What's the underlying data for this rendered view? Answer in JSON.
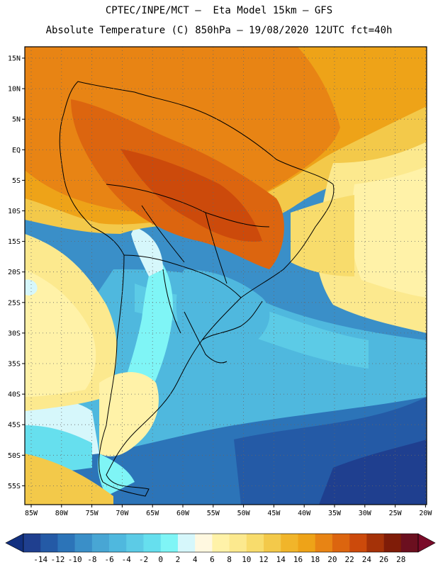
{
  "header": {
    "line1": "CPTEC/INPE/MCT —  Eta Model 15km — GFS",
    "line2": "Absolute Temperature (C) 850hPa — 19/08/2020 12UTC fct=40h"
  },
  "map": {
    "region": "South America",
    "variable": "Absolute Temperature",
    "units": "C",
    "level": "850hPa",
    "lat_labels": [
      "15N",
      "10N",
      "5N",
      "EQ",
      "5S",
      "10S",
      "15S",
      "20S",
      "25S",
      "30S",
      "35S",
      "40S",
      "45S",
      "50S",
      "55S"
    ],
    "lon_labels": [
      "85W",
      "80W",
      "75W",
      "70W",
      "65W",
      "60W",
      "55W",
      "50W",
      "45W",
      "40W",
      "35W",
      "30W",
      "25W",
      "20W"
    ]
  },
  "colorbar": {
    "labels": [
      "-14",
      "-12",
      "-10",
      "-8",
      "-6",
      "-4",
      "-2",
      "0",
      "2",
      "4",
      "6",
      "8",
      "10",
      "12",
      "14",
      "16",
      "18",
      "20",
      "22",
      "24",
      "26",
      "28"
    ],
    "colors": [
      "#1f3f8f",
      "#245aa6",
      "#2c74b8",
      "#3a8fc8",
      "#48a6d4",
      "#4fb8de",
      "#5ccbe6",
      "#66dfee",
      "#7ff5f6",
      "#d6f7fb",
      "#fff8e0",
      "#fff2a8",
      "#fce98e",
      "#f8dc6c",
      "#f3c94a",
      "#f1b52a",
      "#eea318",
      "#e88414",
      "#dc650f",
      "#cc4a0b",
      "#a53208",
      "#7f1c08",
      "#6b0f1f"
    ],
    "under_color": "#123080",
    "over_color": "#7a0a28"
  }
}
